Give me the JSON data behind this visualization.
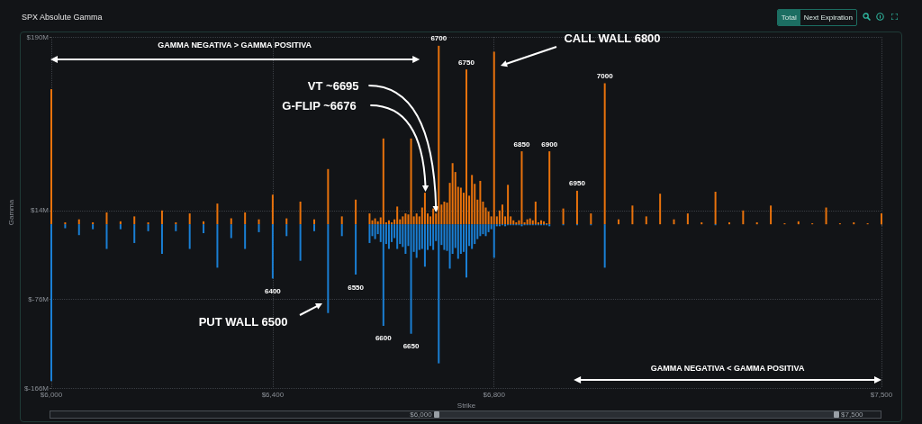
{
  "chart_data": {
    "type": "bar",
    "title": "SPX Absolute Gamma",
    "xlabel": "Strike",
    "ylabel": "Gamma",
    "x": [
      6000,
      6025,
      6050,
      6075,
      6100,
      6125,
      6150,
      6175,
      6200,
      6225,
      6250,
      6275,
      6300,
      6325,
      6350,
      6375,
      6400,
      6425,
      6450,
      6475,
      6500,
      6525,
      6550,
      6575,
      6580,
      6585,
      6590,
      6595,
      6600,
      6605,
      6610,
      6615,
      6620,
      6625,
      6630,
      6635,
      6640,
      6645,
      6650,
      6655,
      6660,
      6665,
      6670,
      6675,
      6680,
      6685,
      6690,
      6695,
      6700,
      6705,
      6710,
      6715,
      6720,
      6725,
      6730,
      6735,
      6740,
      6745,
      6750,
      6755,
      6760,
      6765,
      6770,
      6775,
      6780,
      6785,
      6790,
      6795,
      6800,
      6805,
      6810,
      6815,
      6820,
      6825,
      6830,
      6835,
      6840,
      6845,
      6850,
      6855,
      6860,
      6865,
      6870,
      6875,
      6880,
      6885,
      6890,
      6895,
      6900,
      6925,
      6950,
      6975,
      7000,
      7025,
      7050,
      7075,
      7100,
      7125,
      7150,
      7175,
      7200,
      7225,
      7250,
      7275,
      7300,
      7325,
      7350,
      7375,
      7400,
      7425,
      7450,
      7475,
      7500
    ],
    "series": [
      {
        "color": "#e8720c",
        "values": [
          137,
          2,
          5,
          2,
          12,
          3,
          8,
          2,
          14,
          2,
          11,
          3,
          21,
          6,
          12,
          5,
          30,
          6,
          23,
          5,
          56,
          8,
          25,
          11,
          4,
          6,
          3,
          7,
          87,
          2,
          4,
          2,
          5,
          18,
          5,
          8,
          11,
          10,
          87,
          8,
          11,
          8,
          17,
          32,
          11,
          8,
          16,
          11,
          181,
          20,
          23,
          22,
          42,
          62,
          53,
          38,
          37,
          32,
          157,
          29,
          50,
          41,
          25,
          44,
          23,
          17,
          13,
          8,
          175,
          8,
          14,
          20,
          8,
          40,
          8,
          4,
          2,
          4,
          74,
          2,
          5,
          6,
          4,
          23,
          2,
          4,
          3,
          1,
          74,
          16,
          34,
          11,
          143,
          5,
          19,
          8,
          31,
          5,
          11,
          2,
          33,
          2,
          14,
          2,
          19,
          1,
          3,
          1,
          17,
          1,
          2,
          1,
          11
        ]
      },
      {
        "color": "#1a7fd4",
        "values": [
          -159,
          -4,
          -11,
          -5,
          -25,
          -5,
          -19,
          -7,
          -30,
          -7,
          -25,
          -9,
          -44,
          -14,
          -25,
          -8,
          -55,
          -12,
          -37,
          -7,
          -90,
          -12,
          -51,
          -19,
          -12,
          -15,
          -10,
          -18,
          -103,
          -20,
          -25,
          -18,
          -14,
          -25,
          -20,
          -23,
          -30,
          -22,
          -111,
          -28,
          -34,
          -26,
          -25,
          -43,
          -26,
          -22,
          -26,
          -17,
          -141,
          -21,
          -26,
          -27,
          -45,
          -30,
          -24,
          -35,
          -30,
          -28,
          -54,
          -22,
          -25,
          -20,
          -15,
          -12,
          -10,
          -12,
          -8,
          -5,
          -34,
          -2,
          -2,
          -1,
          -2,
          -1,
          -1,
          -1,
          -1,
          -1,
          -2,
          -1,
          -1,
          -1,
          -1,
          -1,
          -1,
          -1,
          -1,
          -1,
          -2,
          -1,
          -1,
          -1,
          -44,
          0,
          0,
          0,
          0,
          0,
          0,
          0,
          -1,
          0,
          0,
          0,
          0,
          0,
          0,
          0,
          0,
          0,
          0,
          0,
          0
        ]
      }
    ],
    "xlim": [
      6000,
      7500
    ],
    "xticks": [
      {
        "value": 6000,
        "label": "$6,000"
      },
      {
        "value": 6400,
        "label": "$6,400"
      },
      {
        "value": 6800,
        "label": "$6,800"
      },
      {
        "value": 7500,
        "label": "$7,500"
      }
    ],
    "ylim": [
      -166,
      190
    ],
    "yticks": [
      {
        "value": -166,
        "label": "$-166M"
      },
      {
        "value": -76,
        "label": "$-76M"
      },
      {
        "value": 14,
        "label": "$14M"
      },
      {
        "value": 190,
        "label": "$190M"
      }
    ],
    "grid": true,
    "annotations": [
      "GAMMA NEGATIVA > GAMMA POSITIVA",
      "GAMMA NEGATIVA < GAMMA POSITIVA",
      "CALL WALL 6800",
      "PUT WALL 6500",
      "Total",
      "Next Expiration",
      {
        "text": "VT ~6695",
        "x": 6695,
        "y": 11
      },
      {
        "text": "G-FLIP ~6676",
        "x": 6676,
        "y": 32
      },
      {
        "text": "6700",
        "x": 6700,
        "y": 181
      },
      {
        "text": "6750",
        "x": 6750,
        "y": 157
      },
      {
        "text": "7000",
        "x": 7000,
        "y": 143
      },
      {
        "text": "6850",
        "x": 6850,
        "y": 74
      },
      {
        "text": "6900",
        "x": 6900,
        "y": 74
      },
      {
        "text": "6950",
        "x": 6950,
        "y": 34
      },
      {
        "text": "6400",
        "x": 6400,
        "y": -55
      },
      {
        "text": "6550",
        "x": 6550,
        "y": -51
      },
      {
        "text": "6600",
        "x": 6600,
        "y": -103
      },
      {
        "text": "6650",
        "x": 6650,
        "y": -111
      }
    ]
  }
}
